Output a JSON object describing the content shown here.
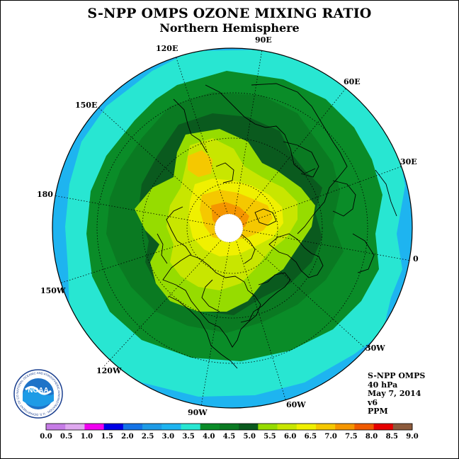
{
  "header": {
    "title": "S-NPP OMPS OZONE MIXING RATIO",
    "subtitle": "Northern Hemisphere"
  },
  "longitude_labels": [
    "120E",
    "90E",
    "60E",
    "150E",
    "30E",
    "180",
    "0",
    "150W",
    "30W",
    "120W",
    "60W",
    "90W"
  ],
  "info": {
    "instrument": "S-NPP OMPS",
    "pressure": "40 hPa",
    "date": "May 7, 2014",
    "version": "v6",
    "units": "PPM"
  },
  "logo": {
    "text": "NOAA",
    "ring_text": "NATIONAL OCEANIC AND ATMOSPHERIC ADMINISTRATION · U.S. DEPARTMENT OF COMMERCE"
  },
  "legend": {
    "ticks": [
      "0.0",
      "0.5",
      "1.0",
      "1.5",
      "2.0",
      "2.5",
      "3.0",
      "3.5",
      "4.0",
      "4.5",
      "5.0",
      "5.5",
      "6.0",
      "6.5",
      "7.0",
      "7.5",
      "8.0",
      "8.5",
      "9.0"
    ],
    "colors": [
      "#c67ce6",
      "#dfa8ef",
      "#f000f0",
      "#0000e6",
      "#1473e6",
      "#1e9be6",
      "#1eb4f0",
      "#28e6d2",
      "#0a8c28",
      "#0a7a22",
      "#0a5a1e",
      "#96dc00",
      "#c8e600",
      "#f0f000",
      "#f5c800",
      "#f59600",
      "#f05a00",
      "#e60000",
      "#8c5a3c"
    ]
  }
}
